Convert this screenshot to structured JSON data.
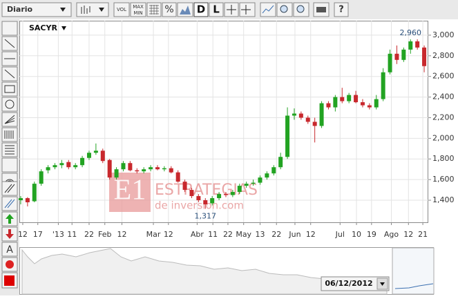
{
  "toolbar": {
    "period": "Diario",
    "vol": "VOL",
    "max": "MAX",
    "min": "MIN",
    "percent": "%",
    "daily": "D",
    "line": "L"
  },
  "chart_data": {
    "type": "candlestick",
    "symbol": "SACYR",
    "up_color": "#22a322",
    "down_color": "#c8282d",
    "open": [
      1400,
      1420,
      1390,
      1560,
      1690,
      1720,
      1740,
      1770,
      1720,
      1740,
      1810,
      1860,
      1880,
      1790,
      1620,
      1700,
      1760,
      1690,
      1680,
      1700,
      1720,
      1700,
      1710,
      1670,
      1580,
      1500,
      1440,
      1400,
      1370,
      1420,
      1460,
      1450,
      1480,
      1540,
      1560,
      1570,
      1620,
      1660,
      1720,
      1820,
      2220,
      2240,
      2200,
      2160,
      2120,
      2340,
      2300,
      2400,
      2360,
      2420,
      2350,
      2320,
      2300,
      2380,
      2640,
      2820,
      2760,
      2860,
      2940,
      2880
    ],
    "high": [
      1440,
      1430,
      1580,
      1700,
      1740,
      1760,
      1790,
      1790,
      1760,
      1830,
      1880,
      1950,
      1900,
      1800,
      1720,
      1780,
      1780,
      1710,
      1720,
      1740,
      1740,
      1730,
      1730,
      1690,
      1600,
      1520,
      1460,
      1420,
      1440,
      1480,
      1480,
      1500,
      1560,
      1580,
      1600,
      1640,
      1680,
      1740,
      1860,
      2300,
      2290,
      2260,
      2220,
      2200,
      2360,
      2360,
      2420,
      2490,
      2440,
      2460,
      2380,
      2340,
      2420,
      2680,
      2860,
      2900,
      2880,
      2960,
      2960,
      2900
    ],
    "low": [
      1360,
      1340,
      1380,
      1540,
      1660,
      1700,
      1710,
      1700,
      1700,
      1720,
      1790,
      1840,
      1760,
      1600,
      1600,
      1680,
      1680,
      1660,
      1660,
      1680,
      1690,
      1680,
      1660,
      1570,
      1480,
      1420,
      1380,
      1317,
      1350,
      1400,
      1430,
      1430,
      1460,
      1520,
      1540,
      1550,
      1600,
      1640,
      1700,
      1800,
      2180,
      2180,
      2140,
      1960,
      2100,
      2280,
      2260,
      2340,
      2340,
      2340,
      2300,
      2280,
      2280,
      2360,
      2620,
      2720,
      2740,
      2820,
      2860,
      2640
    ],
    "close": [
      1420,
      1380,
      1560,
      1680,
      1720,
      1740,
      1760,
      1720,
      1740,
      1810,
      1860,
      1880,
      1780,
      1620,
      1700,
      1760,
      1690,
      1680,
      1700,
      1720,
      1700,
      1710,
      1670,
      1580,
      1500,
      1440,
      1400,
      1360,
      1420,
      1460,
      1450,
      1480,
      1540,
      1560,
      1570,
      1620,
      1660,
      1720,
      1820,
      2220,
      2240,
      2200,
      2160,
      2120,
      2340,
      2300,
      2400,
      2360,
      2420,
      2350,
      2320,
      2300,
      2380,
      2640,
      2820,
      2760,
      2860,
      2940,
      2880,
      2700
    ],
    "annotations": [
      {
        "index": 57,
        "value": 2960,
        "label": "2,960"
      },
      {
        "index": 27,
        "value": 1317,
        "label": "1,317"
      }
    ],
    "xlim": [
      -0.2,
      59.6
    ],
    "ylim": [
      1186,
      3140
    ],
    "xticks": [
      {
        "value": 0.3,
        "label": "12"
      },
      {
        "value": 2.5,
        "label": "17"
      },
      {
        "value": 5.5,
        "label": "'13"
      },
      {
        "value": 7.5,
        "label": "11"
      },
      {
        "value": 10,
        "label": "22"
      },
      {
        "value": 12.3,
        "label": "Feb"
      },
      {
        "value": 14.8,
        "label": "12"
      },
      {
        "value": 19.4,
        "label": "Mar"
      },
      {
        "value": 21.6,
        "label": "12"
      },
      {
        "value": 25.8,
        "label": "Abr"
      },
      {
        "value": 28.1,
        "label": "11"
      },
      {
        "value": 30.3,
        "label": "22"
      },
      {
        "value": 32.6,
        "label": "May"
      },
      {
        "value": 35,
        "label": "13"
      },
      {
        "value": 37.4,
        "label": "22"
      },
      {
        "value": 40.1,
        "label": "Jun"
      },
      {
        "value": 42.4,
        "label": "12"
      },
      {
        "value": 46.7,
        "label": "Jul"
      },
      {
        "value": 49.1,
        "label": "10"
      },
      {
        "value": 51.3,
        "label": "19"
      },
      {
        "value": 54.2,
        "label": "Ago"
      },
      {
        "value": 56.7,
        "label": "12"
      },
      {
        "value": 58.8,
        "label": "21"
      }
    ],
    "yticks": [
      {
        "value": 1400,
        "label": "1,400"
      },
      {
        "value": 1600,
        "label": "1,600"
      },
      {
        "value": 1800,
        "label": "1,800"
      },
      {
        "value": 2000,
        "label": "2,000"
      },
      {
        "value": 2200,
        "label": "2,200"
      },
      {
        "value": 2400,
        "label": "2,400"
      },
      {
        "value": 2600,
        "label": "2,600"
      },
      {
        "value": 2800,
        "label": "2,800"
      },
      {
        "value": 3000,
        "label": "3,000"
      }
    ],
    "grid": true
  },
  "watermark": {
    "title": "ESTRATEGIAS",
    "subtitle": "de inversion.com",
    "logo": "E1"
  },
  "navigator": {
    "date": "06/12/2012"
  }
}
